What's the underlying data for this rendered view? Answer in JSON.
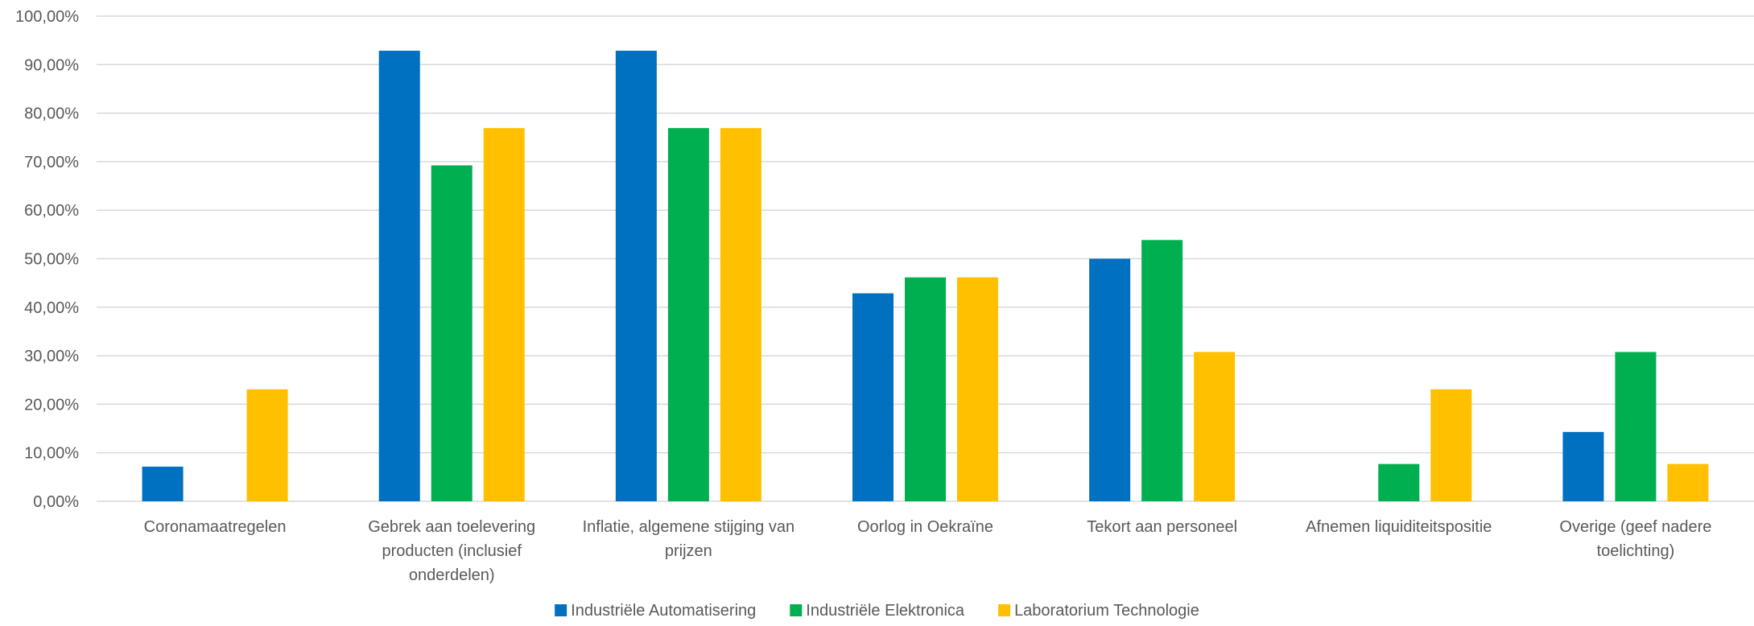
{
  "chart_data": {
    "type": "bar",
    "categories": [
      [
        "Coronamaatregelen"
      ],
      [
        "Gebrek aan toelevering",
        "producten (inclusief",
        "onderdelen)"
      ],
      [
        "Inflatie, algemene stijging van",
        "prijzen"
      ],
      [
        "Oorlog in Oekraïne"
      ],
      [
        "Tekort aan personeel"
      ],
      [
        "Afnemen liquiditeitspositie"
      ],
      [
        "Overige (geef nadere",
        "toelichting)"
      ]
    ],
    "series": [
      {
        "name": "Industriële Automatisering",
        "color": "#0070C0",
        "values": [
          7.14,
          92.86,
          92.86,
          42.86,
          50.0,
          0,
          14.29
        ]
      },
      {
        "name": "Industriële Elektronica",
        "color": "#00B050",
        "values": [
          0,
          69.23,
          76.92,
          46.15,
          53.85,
          7.69,
          30.77
        ]
      },
      {
        "name": "Laboratorium Technologie",
        "color": "#FFC000",
        "values": [
          23.08,
          76.92,
          76.92,
          46.15,
          30.77,
          23.08,
          7.69
        ]
      }
    ],
    "ylim": [
      0,
      100
    ],
    "yticks": [
      "0,00%",
      "10,00%",
      "20,00%",
      "30,00%",
      "40,00%",
      "50,00%",
      "60,00%",
      "70,00%",
      "80,00%",
      "90,00%",
      "100,00%"
    ],
    "grid": true,
    "gridColor": "#D9D9D9",
    "legend": "bottom-center"
  }
}
